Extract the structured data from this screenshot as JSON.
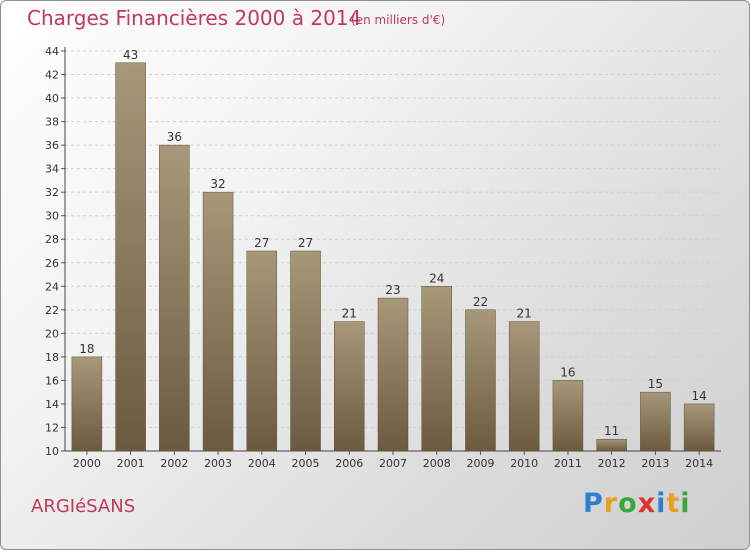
{
  "chart_data": {
    "type": "bar",
    "title": "Charges Financières 2000 à 2014",
    "subtitle": "(en milliers d'€)",
    "categories": [
      "2000",
      "2001",
      "2002",
      "2003",
      "2004",
      "2005",
      "2006",
      "2007",
      "2008",
      "2009",
      "2010",
      "2011",
      "2012",
      "2013",
      "2014"
    ],
    "values": [
      18,
      43,
      36,
      32,
      27,
      27,
      21,
      23,
      24,
      22,
      21,
      16,
      11,
      15,
      14
    ],
    "ylim": [
      10,
      44
    ],
    "yticks": [
      "10",
      "12",
      "14",
      "16",
      "18",
      "20",
      "22",
      "24",
      "26",
      "28",
      "30",
      "32",
      "34",
      "36",
      "38",
      "40",
      "42",
      "44"
    ],
    "xlabel": "",
    "ylabel": "",
    "grid": true
  },
  "commune": "ARGIéSANS",
  "logo": {
    "letters": [
      "P",
      "r",
      "o",
      "x",
      "i",
      "t",
      "i"
    ],
    "colors": [
      "#2f7fd0",
      "#e8a020",
      "#39a839",
      "#e03030",
      "#2f7fd0",
      "#e8a020",
      "#39a839"
    ]
  },
  "colors": {
    "bar_top": "#a8987a",
    "bar_bottom": "#6b5a40",
    "title": "#c0395a"
  }
}
